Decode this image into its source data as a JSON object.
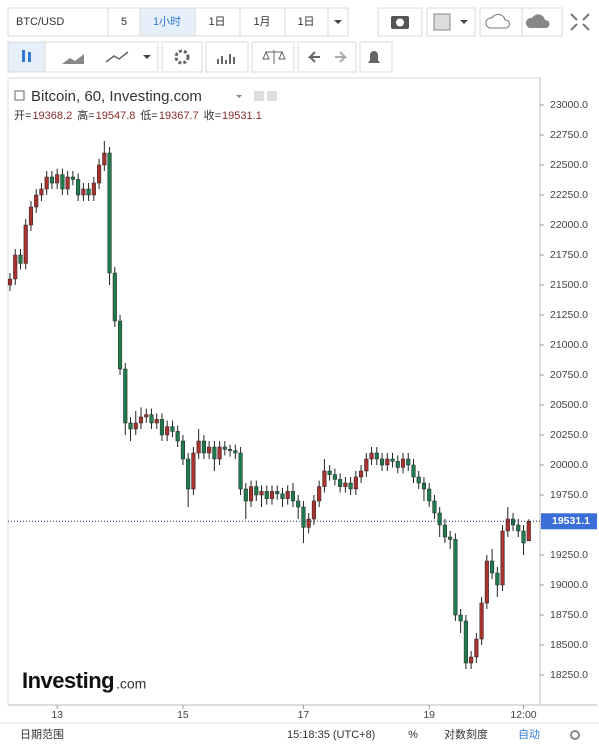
{
  "toolbar": {
    "symbol": "BTC/USD",
    "interval": "5",
    "buttons": [
      "1小时",
      "1日",
      "1月",
      "1日"
    ]
  },
  "legend": {
    "title": "Bitcoin, 60, Investing.com",
    "ohlc_labels": [
      "开=",
      "高=",
      "低=",
      "收="
    ]
  },
  "logo": {
    "text": "Investing",
    "suffix": ".com"
  },
  "footer": {
    "items": [
      "日期范围",
      "15:18:35 (UTC+8)",
      "%",
      "对数刻度",
      "自动"
    ]
  },
  "chart_data": {
    "type": "candlestick",
    "up_color": "#a8322d",
    "down_color": "#1f7a4c",
    "line_color": "#1d2c6b",
    "ylim": [
      18000,
      23200
    ],
    "yticks": [
      {
        "value": 18250,
        "label": "18250.0"
      },
      {
        "value": 18500,
        "label": "18500.0"
      },
      {
        "value": 18750,
        "label": "18750.0"
      },
      {
        "value": 19000,
        "label": "19000.0"
      },
      {
        "value": 19250,
        "label": "19250.0"
      },
      {
        "value": 19500,
        "label": "19500.0"
      },
      {
        "value": 19750,
        "label": "19750.0"
      },
      {
        "value": 20000,
        "label": "20000.0"
      },
      {
        "value": 20250,
        "label": "20250.0"
      },
      {
        "value": 20500,
        "label": "20500.0"
      },
      {
        "value": 20750,
        "label": "20750.0"
      },
      {
        "value": 21000,
        "label": "21000.0"
      },
      {
        "value": 21250,
        "label": "21250.0"
      },
      {
        "value": 21500,
        "label": "21500.0"
      },
      {
        "value": 21750,
        "label": "21750.0"
      },
      {
        "value": 22000,
        "label": "22000.0"
      },
      {
        "value": 22250,
        "label": "22250.0"
      },
      {
        "value": 22500,
        "label": "22500.0"
      },
      {
        "value": 22750,
        "label": "22750.0"
      },
      {
        "value": 23000,
        "label": "23000.0"
      }
    ],
    "categories": [
      null,
      null,
      null,
      null,
      null,
      null,
      null,
      null,
      null,
      "13",
      null,
      null,
      null,
      null,
      null,
      null,
      null,
      null,
      null,
      null,
      null,
      null,
      null,
      null,
      null,
      null,
      null,
      null,
      null,
      null,
      null,
      null,
      null,
      "15",
      null,
      null,
      null,
      null,
      null,
      null,
      null,
      null,
      null,
      null,
      null,
      null,
      null,
      null,
      null,
      null,
      null,
      null,
      null,
      null,
      null,
      null,
      "17",
      null,
      null,
      null,
      null,
      null,
      null,
      null,
      null,
      null,
      null,
      null,
      null,
      null,
      null,
      null,
      null,
      null,
      null,
      null,
      null,
      null,
      null,
      null,
      "19",
      null,
      null,
      null,
      null,
      null,
      null,
      null,
      null,
      null,
      null,
      null,
      null,
      null,
      null,
      null,
      null,
      null,
      "12:00",
      null
    ],
    "open": [
      21500,
      21550,
      21750,
      21680,
      22000,
      22150,
      22250,
      22300,
      22400,
      22350,
      22420,
      22300,
      22400,
      22380,
      22250,
      22300,
      22250,
      22350,
      22500,
      22600,
      21600,
      21200,
      20800,
      20350,
      20300,
      20350,
      20400,
      20420,
      20350,
      20380,
      20250,
      20320,
      20280,
      20200,
      20050,
      19800,
      20100,
      20200,
      20100,
      20150,
      20050,
      20150,
      20130,
      20120,
      20100,
      19800,
      19700,
      19820,
      19750,
      19780,
      19720,
      19780,
      19760,
      19720,
      19780,
      19700,
      19650,
      19480,
      19550,
      19700,
      19820,
      19950,
      19920,
      19880,
      19820,
      19850,
      19800,
      19900,
      19950,
      20050,
      20100,
      20050,
      20000,
      20050,
      20030,
      19980,
      20050,
      20000,
      19900,
      19850,
      19800,
      19700,
      19600,
      19500,
      19400,
      19380,
      18750,
      18700,
      18350,
      18400,
      18550,
      18850,
      19200,
      19100,
      19000,
      19450,
      19550,
      19500,
      19450,
      19368.2
    ],
    "high": [
      21600,
      21800,
      21800,
      22050,
      22200,
      22300,
      22350,
      22450,
      22450,
      22470,
      22470,
      22450,
      22450,
      22430,
      22350,
      22350,
      22400,
      22550,
      22700,
      22650,
      21650,
      21250,
      20850,
      20400,
      20450,
      20480,
      20470,
      20470,
      20430,
      20430,
      20370,
      20370,
      20330,
      20250,
      20100,
      20150,
      20300,
      20250,
      20200,
      20200,
      20200,
      20200,
      20170,
      20170,
      20150,
      19850,
      19870,
      19870,
      19830,
      19830,
      19830,
      19830,
      19810,
      19830,
      19850,
      19750,
      19700,
      19600,
      19750,
      19870,
      20050,
      20000,
      19970,
      19930,
      19900,
      19900,
      19950,
      20000,
      20100,
      20150,
      20150,
      20100,
      20100,
      20100,
      20080,
      20100,
      20100,
      20050,
      19950,
      19900,
      19850,
      19750,
      19650,
      19550,
      19450,
      19430,
      18800,
      18750,
      18450,
      18600,
      18900,
      19250,
      19300,
      19150,
      19500,
      19650,
      19600,
      19550,
      19500,
      19547.8
    ],
    "low": [
      21450,
      21500,
      21630,
      21630,
      21950,
      22100,
      22200,
      22250,
      22300,
      22300,
      22250,
      22250,
      22330,
      22200,
      22200,
      22200,
      22200,
      22300,
      22450,
      21500,
      21150,
      20750,
      20250,
      20200,
      20250,
      20300,
      20350,
      20300,
      20300,
      20200,
      20200,
      20230,
      20150,
      20000,
      19650,
      19750,
      20050,
      20050,
      20050,
      19950,
      20000,
      20080,
      20070,
      20050,
      19750,
      19550,
      19650,
      19700,
      19650,
      19670,
      19670,
      19710,
      19650,
      19670,
      19650,
      19550,
      19350,
      19430,
      19500,
      19650,
      19770,
      19870,
      19830,
      19770,
      19770,
      19750,
      19750,
      19850,
      19900,
      20000,
      20000,
      19950,
      19950,
      19980,
      19930,
      19930,
      19950,
      19850,
      19800,
      19700,
      19650,
      19550,
      19400,
      19350,
      19300,
      18700,
      18600,
      18300,
      18300,
      18350,
      18500,
      18800,
      19050,
      18900,
      18950,
      19400,
      19450,
      19400,
      19250,
      19367.7
    ],
    "close": [
      21550,
      21750,
      21680,
      22000,
      22150,
      22250,
      22300,
      22400,
      22350,
      22420,
      22300,
      22400,
      22380,
      22250,
      22300,
      22250,
      22350,
      22500,
      22600,
      21600,
      21200,
      20800,
      20350,
      20300,
      20350,
      20400,
      20420,
      20350,
      20380,
      20250,
      20320,
      20280,
      20200,
      20050,
      19800,
      20100,
      20200,
      20100,
      20150,
      20050,
      20150,
      20130,
      20120,
      20100,
      19800,
      19700,
      19820,
      19750,
      19780,
      19720,
      19780,
      19760,
      19720,
      19780,
      19700,
      19650,
      19480,
      19550,
      19700,
      19820,
      19950,
      19920,
      19880,
      19820,
      19850,
      19800,
      19900,
      19950,
      20050,
      20100,
      20050,
      20000,
      20050,
      20030,
      19980,
      20050,
      20000,
      19900,
      19850,
      19800,
      19700,
      19600,
      19500,
      19400,
      19380,
      18750,
      18700,
      18350,
      18400,
      18550,
      18850,
      19200,
      19100,
      19000,
      19450,
      19550,
      19500,
      19450,
      19350,
      19531.1
    ]
  }
}
